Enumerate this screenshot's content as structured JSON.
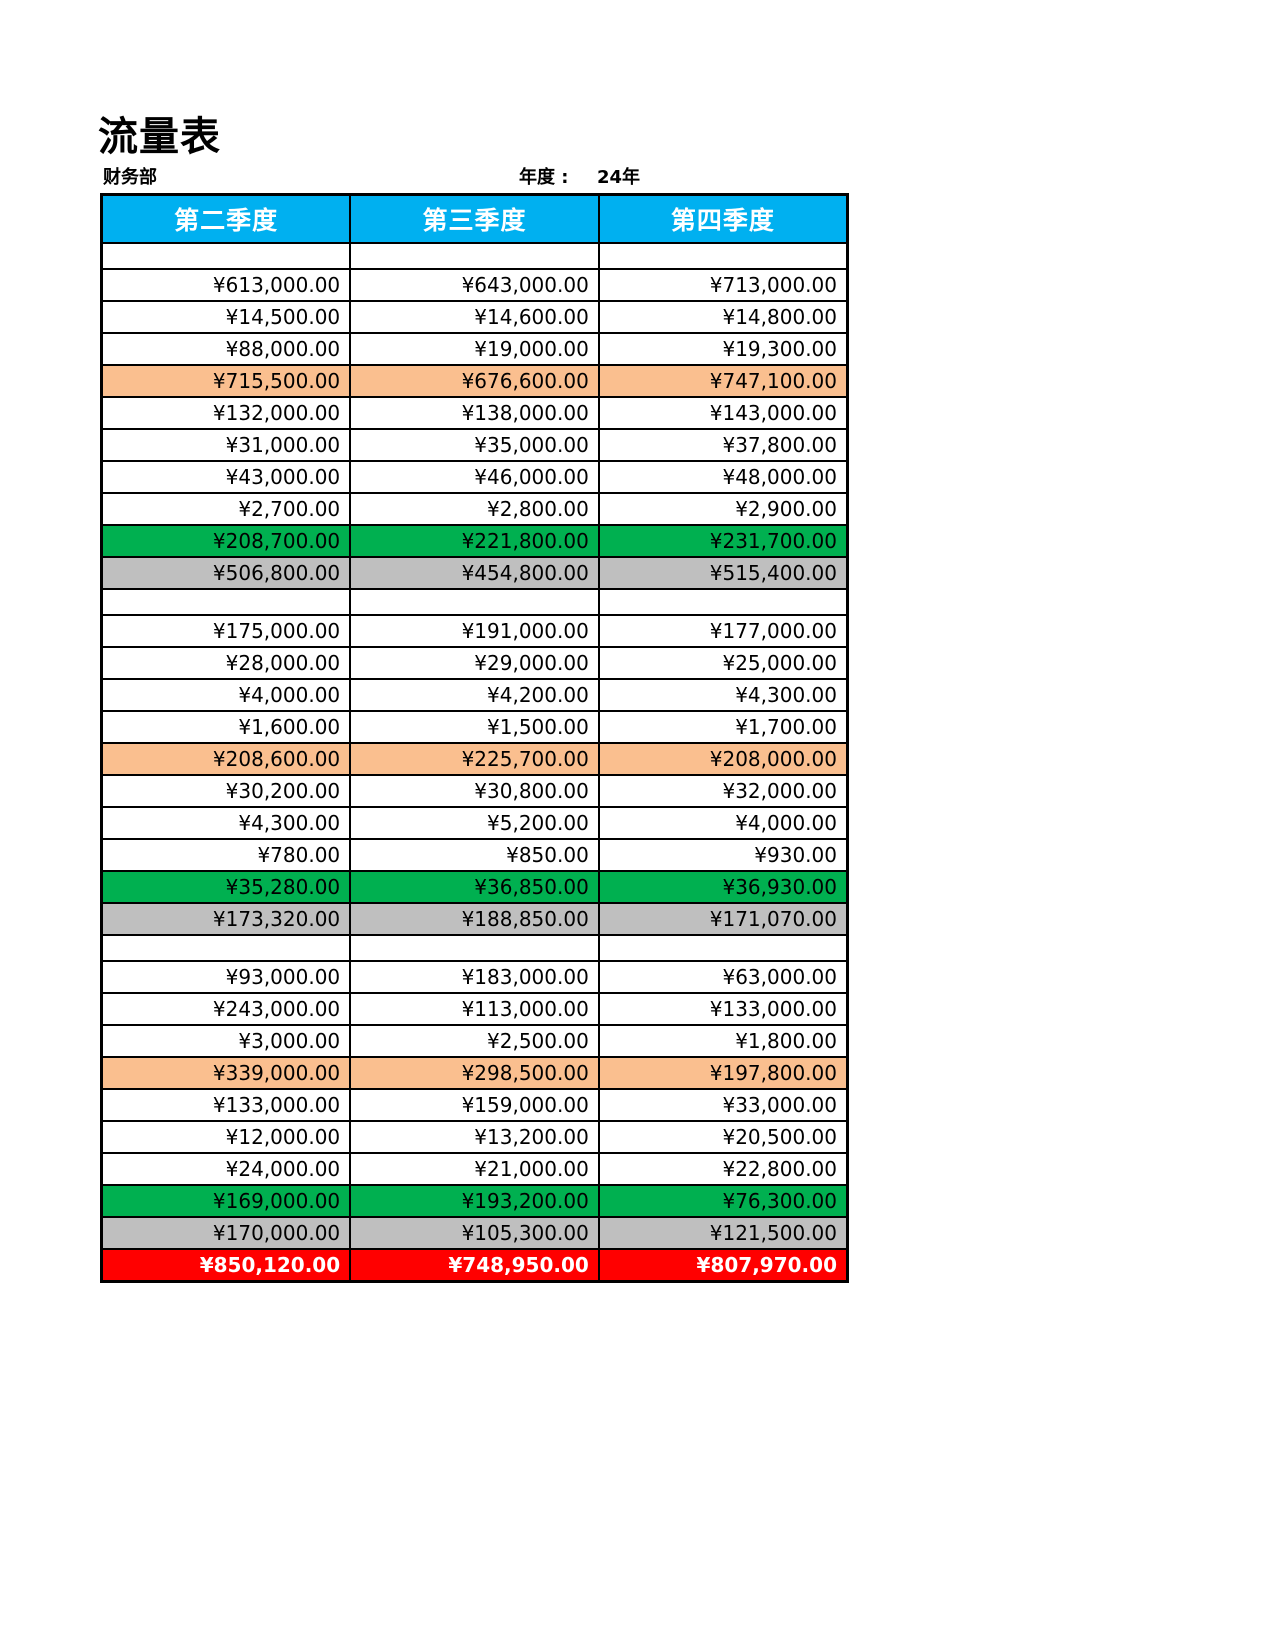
{
  "header": {
    "title": "流量表",
    "department": "财务部",
    "year_label": "年度 :",
    "year_value": "24年"
  },
  "table": {
    "columns": [
      "第二季度",
      "第三季度",
      "第四季度"
    ],
    "colors": {
      "header_bg": "#00B0F0",
      "header_text": "#FFFFFF",
      "subtotal_bg": "#FABF8F",
      "net_bg": "#00B050",
      "balance_bg": "#BFBFBF",
      "total_bg": "#FF0000",
      "total_text": "#FFFFFF",
      "border": "#000000"
    },
    "rows": [
      {
        "type": "blank",
        "values": [
          "",
          "",
          ""
        ]
      },
      {
        "type": "data",
        "values": [
          "¥613,000.00",
          "¥643,000.00",
          "¥713,000.00"
        ]
      },
      {
        "type": "data",
        "values": [
          "¥14,500.00",
          "¥14,600.00",
          "¥14,800.00"
        ]
      },
      {
        "type": "data",
        "values": [
          "¥88,000.00",
          "¥19,000.00",
          "¥19,300.00"
        ]
      },
      {
        "type": "subtotal",
        "values": [
          "¥715,500.00",
          "¥676,600.00",
          "¥747,100.00"
        ]
      },
      {
        "type": "data",
        "values": [
          "¥132,000.00",
          "¥138,000.00",
          "¥143,000.00"
        ]
      },
      {
        "type": "data",
        "values": [
          "¥31,000.00",
          "¥35,000.00",
          "¥37,800.00"
        ]
      },
      {
        "type": "data",
        "values": [
          "¥43,000.00",
          "¥46,000.00",
          "¥48,000.00"
        ]
      },
      {
        "type": "data",
        "values": [
          "¥2,700.00",
          "¥2,800.00",
          "¥2,900.00"
        ]
      },
      {
        "type": "net",
        "values": [
          "¥208,700.00",
          "¥221,800.00",
          "¥231,700.00"
        ]
      },
      {
        "type": "balance",
        "values": [
          "¥506,800.00",
          "¥454,800.00",
          "¥515,400.00"
        ]
      },
      {
        "type": "blank",
        "values": [
          "",
          "",
          ""
        ]
      },
      {
        "type": "data",
        "values": [
          "¥175,000.00",
          "¥191,000.00",
          "¥177,000.00"
        ]
      },
      {
        "type": "data",
        "values": [
          "¥28,000.00",
          "¥29,000.00",
          "¥25,000.00"
        ]
      },
      {
        "type": "data",
        "values": [
          "¥4,000.00",
          "¥4,200.00",
          "¥4,300.00"
        ]
      },
      {
        "type": "data",
        "values": [
          "¥1,600.00",
          "¥1,500.00",
          "¥1,700.00"
        ]
      },
      {
        "type": "subtotal",
        "values": [
          "¥208,600.00",
          "¥225,700.00",
          "¥208,000.00"
        ]
      },
      {
        "type": "data",
        "values": [
          "¥30,200.00",
          "¥30,800.00",
          "¥32,000.00"
        ]
      },
      {
        "type": "data",
        "values": [
          "¥4,300.00",
          "¥5,200.00",
          "¥4,000.00"
        ]
      },
      {
        "type": "data",
        "values": [
          "¥780.00",
          "¥850.00",
          "¥930.00"
        ]
      },
      {
        "type": "net",
        "values": [
          "¥35,280.00",
          "¥36,850.00",
          "¥36,930.00"
        ]
      },
      {
        "type": "balance",
        "values": [
          "¥173,320.00",
          "¥188,850.00",
          "¥171,070.00"
        ]
      },
      {
        "type": "blank",
        "values": [
          "",
          "",
          ""
        ]
      },
      {
        "type": "data",
        "values": [
          "¥93,000.00",
          "¥183,000.00",
          "¥63,000.00"
        ]
      },
      {
        "type": "data",
        "values": [
          "¥243,000.00",
          "¥113,000.00",
          "¥133,000.00"
        ]
      },
      {
        "type": "data",
        "values": [
          "¥3,000.00",
          "¥2,500.00",
          "¥1,800.00"
        ]
      },
      {
        "type": "subtotal",
        "values": [
          "¥339,000.00",
          "¥298,500.00",
          "¥197,800.00"
        ]
      },
      {
        "type": "data",
        "values": [
          "¥133,000.00",
          "¥159,000.00",
          "¥33,000.00"
        ]
      },
      {
        "type": "data",
        "values": [
          "¥12,000.00",
          "¥13,200.00",
          "¥20,500.00"
        ]
      },
      {
        "type": "data",
        "values": [
          "¥24,000.00",
          "¥21,000.00",
          "¥22,800.00"
        ]
      },
      {
        "type": "net",
        "values": [
          "¥169,000.00",
          "¥193,200.00",
          "¥76,300.00"
        ]
      },
      {
        "type": "balance",
        "values": [
          "¥170,000.00",
          "¥105,300.00",
          "¥121,500.00"
        ]
      },
      {
        "type": "total",
        "values": [
          "¥850,120.00",
          "¥748,950.00",
          "¥807,970.00"
        ]
      }
    ]
  }
}
